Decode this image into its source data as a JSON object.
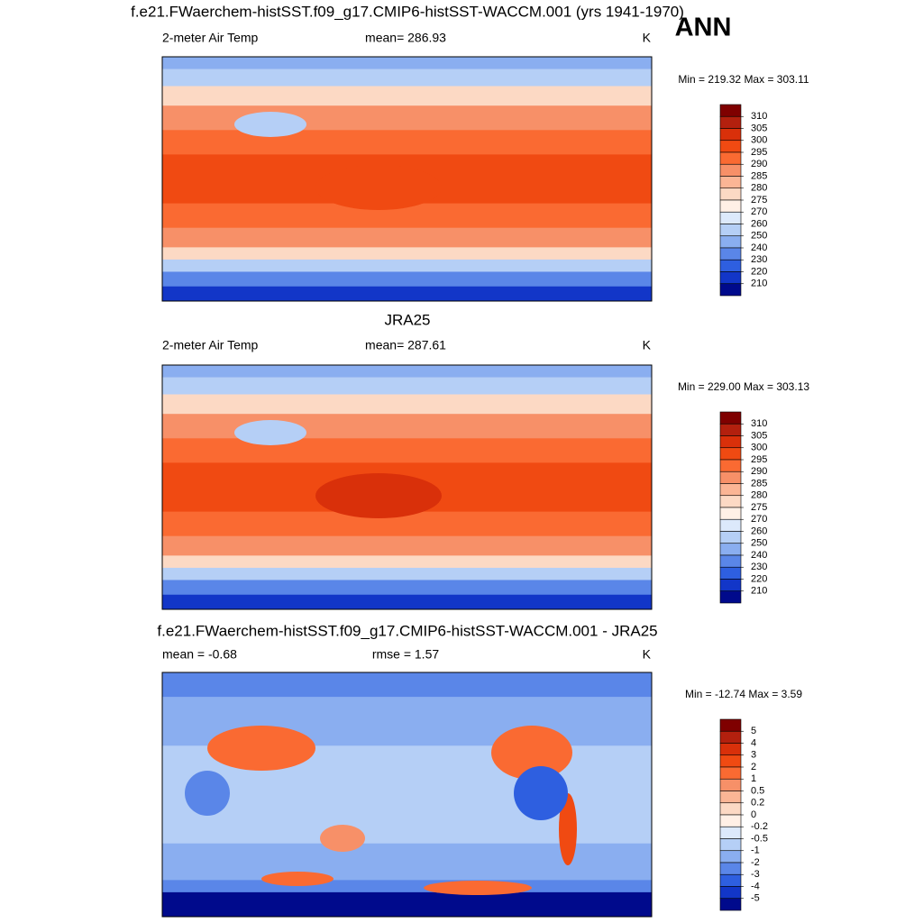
{
  "header": {
    "title": "f.e21.FWaerchem-histSST.f09_g17.CMIP6-histSST-WACCM.001 (yrs 1941-1970)",
    "season": "ANN"
  },
  "panels": [
    {
      "left_label": "2-meter Air Temp",
      "center_label": "mean= 286.93",
      "units": "K",
      "minmax": "Min = 219.32 Max = 303.11",
      "colorbar": {
        "levels": [
          310,
          305,
          300,
          295,
          290,
          285,
          280,
          275,
          270,
          260,
          250,
          240,
          230,
          220,
          210
        ],
        "colors": [
          "#7f0000",
          "#b3200e",
          "#d9300a",
          "#f04a12",
          "#fa6a32",
          "#f79068",
          "#fbb595",
          "#fcd9c4",
          "#fff0e6",
          "#dce9fb",
          "#b5cff6",
          "#8aaef0",
          "#5a86e8",
          "#2e5fe0",
          "#1236c8",
          "#000a8c"
        ]
      }
    },
    {
      "title": "JRA25",
      "left_label": "2-meter Air Temp",
      "center_label": "mean= 287.61",
      "units": "K",
      "minmax": "Min = 229.00 Max = 303.13",
      "colorbar": {
        "levels": [
          310,
          305,
          300,
          295,
          290,
          285,
          280,
          275,
          270,
          260,
          250,
          240,
          230,
          220,
          210
        ],
        "colors": [
          "#7f0000",
          "#b3200e",
          "#d9300a",
          "#f04a12",
          "#fa6a32",
          "#f79068",
          "#fbb595",
          "#fcd9c4",
          "#fff0e6",
          "#dce9fb",
          "#b5cff6",
          "#8aaef0",
          "#5a86e8",
          "#2e5fe0",
          "#1236c8",
          "#000a8c"
        ]
      }
    },
    {
      "title": "f.e21.FWaerchem-histSST.f09_g17.CMIP6-histSST-WACCM.001 - JRA25",
      "left_label": "mean =  -0.68",
      "center_label": "rmse =   1.57",
      "units": "K",
      "minmax": "Min = -12.74 Max =   3.59",
      "colorbar": {
        "levels": [
          5,
          4,
          3,
          2,
          1,
          0.5,
          0.2,
          0,
          -0.2,
          -0.5,
          -1,
          -2,
          -3,
          -4,
          -5
        ],
        "colors": [
          "#7f0000",
          "#b3200e",
          "#d9300a",
          "#f04a12",
          "#fa6a32",
          "#f79068",
          "#fbb595",
          "#fcd9c4",
          "#fff0e6",
          "#dce9fb",
          "#b5cff6",
          "#8aaef0",
          "#5a86e8",
          "#2e5fe0",
          "#1236c8",
          "#000a8c"
        ]
      }
    }
  ]
}
